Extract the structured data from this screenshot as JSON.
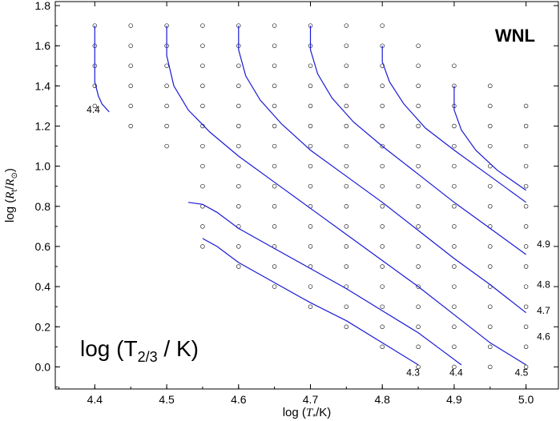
{
  "chart_data": {
    "type": "line",
    "title": "WNL",
    "xlabel": "log (T*/K)",
    "ylabel": "log (Rt/R⊙)",
    "annotation": "log (T2/3 / K)",
    "xlim": [
      4.345,
      5.045
    ],
    "ylim": [
      -0.11,
      1.82
    ],
    "xticks": [
      "4.4",
      "4.5",
      "4.6",
      "4.7",
      "4.8",
      "4.9",
      "5.0"
    ],
    "yticks": [
      "0.0",
      "0.2",
      "0.4",
      "0.6",
      "0.8",
      "1.0",
      "1.2",
      "1.4",
      "1.6",
      "1.8"
    ],
    "grid": false,
    "grid_models": [
      {
        "x": 4.4,
        "y": [
          1.3,
          1.4,
          1.5,
          1.6,
          1.7
        ]
      },
      {
        "x": 4.45,
        "y": [
          1.2,
          1.3,
          1.4,
          1.5,
          1.6,
          1.7
        ]
      },
      {
        "x": 4.5,
        "y": [
          1.1,
          1.2,
          1.3,
          1.4,
          1.5,
          1.6,
          1.7
        ]
      },
      {
        "x": 4.55,
        "y": [
          0.6,
          0.7,
          0.8,
          0.9,
          1.0,
          1.1,
          1.2,
          1.3,
          1.4,
          1.5,
          1.6,
          1.7
        ]
      },
      {
        "x": 4.6,
        "y": [
          0.5,
          0.6,
          0.7,
          0.8,
          0.9,
          1.0,
          1.1,
          1.2,
          1.3,
          1.4,
          1.5,
          1.6,
          1.7
        ]
      },
      {
        "x": 4.65,
        "y": [
          0.4,
          0.5,
          0.6,
          0.7,
          0.8,
          0.9,
          1.0,
          1.1,
          1.2,
          1.3,
          1.4,
          1.5,
          1.6,
          1.7
        ]
      },
      {
        "x": 4.7,
        "y": [
          0.3,
          0.4,
          0.5,
          0.6,
          0.7,
          0.8,
          0.9,
          1.0,
          1.1,
          1.2,
          1.3,
          1.4,
          1.5,
          1.6,
          1.7
        ]
      },
      {
        "x": 4.75,
        "y": [
          0.2,
          0.3,
          0.4,
          0.5,
          0.6,
          0.7,
          0.8,
          0.9,
          1.0,
          1.1,
          1.2,
          1.3,
          1.4,
          1.5,
          1.6,
          1.7
        ]
      },
      {
        "x": 4.8,
        "y": [
          0.1,
          0.2,
          0.3,
          0.4,
          0.5,
          0.6,
          0.7,
          0.8,
          0.9,
          1.0,
          1.1,
          1.2,
          1.3,
          1.4,
          1.5,
          1.6,
          1.7
        ]
      },
      {
        "x": 4.85,
        "y": [
          0.0,
          0.1,
          0.2,
          0.3,
          0.4,
          0.5,
          0.6,
          0.7,
          0.8,
          0.9,
          1.0,
          1.1,
          1.2,
          1.3,
          1.4,
          1.5,
          1.6
        ]
      },
      {
        "x": 4.9,
        "y": [
          0.0,
          0.1,
          0.2,
          0.3,
          0.4,
          0.5,
          0.6,
          0.7,
          0.8,
          0.9,
          1.0,
          1.1,
          1.2,
          1.3,
          1.4,
          1.5
        ]
      },
      {
        "x": 4.95,
        "y": [
          0.0,
          0.1,
          0.2,
          0.3,
          0.4,
          0.5,
          0.6,
          0.7,
          0.8,
          0.9,
          1.0,
          1.1,
          1.2,
          1.3,
          1.4
        ]
      },
      {
        "x": 5.0,
        "y": [
          0.0,
          0.1,
          0.2,
          0.3,
          0.4,
          0.5,
          0.6,
          0.7,
          0.8,
          0.9,
          1.0,
          1.1,
          1.2,
          1.3
        ]
      }
    ],
    "series": [
      {
        "name": "4.3",
        "points": [
          [
            4.55,
            0.64
          ],
          [
            4.57,
            0.6
          ],
          [
            4.6,
            0.52
          ],
          [
            4.65,
            0.42
          ],
          [
            4.7,
            0.32
          ],
          [
            4.75,
            0.23
          ],
          [
            4.8,
            0.12
          ],
          [
            4.85,
            0.01
          ]
        ]
      },
      {
        "name": "4.4",
        "points": [
          [
            4.4,
            1.7
          ],
          [
            4.4,
            1.55
          ],
          [
            4.4,
            1.42
          ],
          [
            4.405,
            1.35
          ],
          [
            4.41,
            1.31
          ],
          [
            4.42,
            1.27
          ]
        ]
      },
      {
        "name": "4.4",
        "points": [
          [
            4.53,
            0.82
          ],
          [
            4.55,
            0.81
          ],
          [
            4.57,
            0.77
          ],
          [
            4.6,
            0.69
          ],
          [
            4.65,
            0.59
          ],
          [
            4.7,
            0.49
          ],
          [
            4.75,
            0.39
          ],
          [
            4.8,
            0.28
          ],
          [
            4.85,
            0.17
          ],
          [
            4.88,
            0.09
          ],
          [
            4.91,
            0.01
          ]
        ]
      },
      {
        "name": "4.5",
        "points": [
          [
            4.5,
            1.7
          ],
          [
            4.5,
            1.55
          ],
          [
            4.51,
            1.4
          ],
          [
            4.53,
            1.28
          ],
          [
            4.56,
            1.17
          ],
          [
            4.6,
            1.05
          ],
          [
            4.65,
            0.92
          ],
          [
            4.7,
            0.79
          ],
          [
            4.75,
            0.66
          ],
          [
            4.8,
            0.53
          ],
          [
            4.85,
            0.4
          ],
          [
            4.9,
            0.26
          ],
          [
            4.95,
            0.12
          ],
          [
            5.0,
            0.01
          ]
        ]
      },
      {
        "name": "4.6",
        "points": [
          [
            4.6,
            1.7
          ],
          [
            4.6,
            1.58
          ],
          [
            4.61,
            1.45
          ],
          [
            4.63,
            1.33
          ],
          [
            4.66,
            1.21
          ],
          [
            4.7,
            1.08
          ],
          [
            4.75,
            0.95
          ],
          [
            4.8,
            0.82
          ],
          [
            4.85,
            0.68
          ],
          [
            4.9,
            0.54
          ],
          [
            4.95,
            0.41
          ],
          [
            5.0,
            0.27
          ]
        ]
      },
      {
        "name": "4.7",
        "points": [
          [
            4.7,
            1.7
          ],
          [
            4.7,
            1.58
          ],
          [
            4.71,
            1.46
          ],
          [
            4.73,
            1.34
          ],
          [
            4.76,
            1.22
          ],
          [
            4.8,
            1.1
          ],
          [
            4.85,
            0.96
          ],
          [
            4.9,
            0.82
          ],
          [
            4.95,
            0.69
          ],
          [
            5.0,
            0.56
          ]
        ]
      },
      {
        "name": "4.8",
        "points": [
          [
            4.8,
            1.6
          ],
          [
            4.8,
            1.52
          ],
          [
            4.81,
            1.42
          ],
          [
            4.83,
            1.31
          ],
          [
            4.86,
            1.19
          ],
          [
            4.9,
            1.08
          ],
          [
            4.95,
            0.95
          ],
          [
            5.0,
            0.82
          ]
        ]
      },
      {
        "name": "4.9",
        "points": [
          [
            4.9,
            1.4
          ],
          [
            4.9,
            1.28
          ],
          [
            4.91,
            1.18
          ],
          [
            4.93,
            1.08
          ],
          [
            4.96,
            0.98
          ],
          [
            5.0,
            0.88
          ]
        ]
      }
    ],
    "contour_labels": [
      {
        "text": "4.4",
        "x": 4.398,
        "y": 1.265,
        "anchor": "middle"
      },
      {
        "text": "4.3",
        "x": 4.852,
        "y": -0.045,
        "anchor": "end"
      },
      {
        "text": "4.4",
        "x": 4.912,
        "y": -0.045,
        "anchor": "end"
      },
      {
        "text": "4.5",
        "x": 5.003,
        "y": -0.045,
        "anchor": "end"
      },
      {
        "text": "4.6",
        "x": 5.015,
        "y": 0.135,
        "anchor": "start"
      },
      {
        "text": "4.7",
        "x": 5.015,
        "y": 0.265,
        "anchor": "start"
      },
      {
        "text": "4.8",
        "x": 5.015,
        "y": 0.395,
        "anchor": "start"
      },
      {
        "text": "4.9",
        "x": 5.015,
        "y": 0.595,
        "anchor": "start"
      }
    ]
  },
  "colors": {
    "contour": "#1a1ad6",
    "axis": "#000000",
    "marker": "#222222"
  }
}
